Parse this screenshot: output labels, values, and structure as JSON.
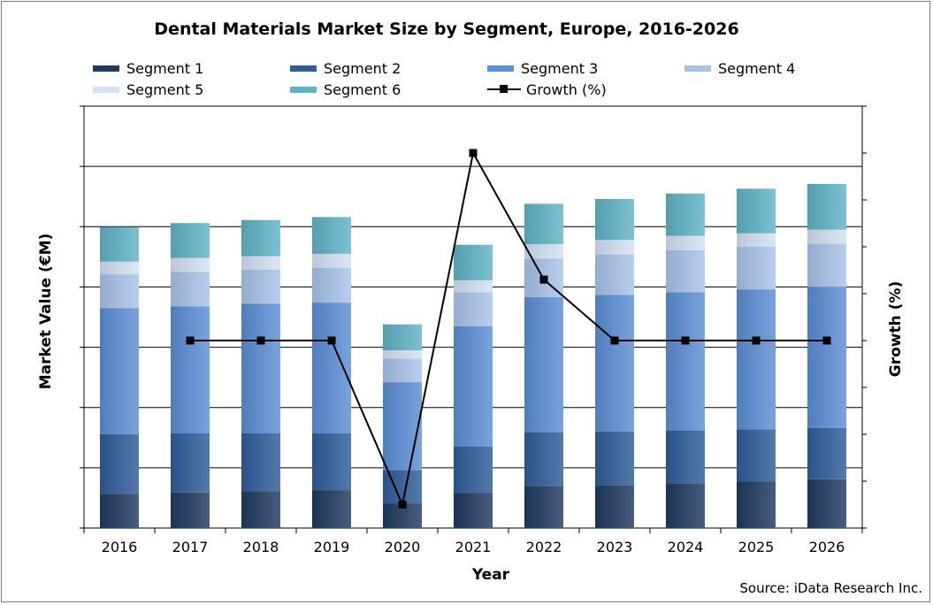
{
  "chart_data": {
    "type": "bar",
    "stacked": true,
    "title": "Dental Materials Market Size by Segment, Europe, 2016-2026",
    "xlabel": "Year",
    "ylabel": "Market Value (€M)",
    "y2label": "Growth (%)",
    "source": "Source: iData Research Inc.",
    "grid": "horizontal",
    "legend_position": "top",
    "categories": [
      "2016",
      "2017",
      "2018",
      "2019",
      "2020",
      "2021",
      "2022",
      "2023",
      "2024",
      "2025",
      "2026"
    ],
    "ylim": [
      0,
      7
    ],
    "y2lim": [
      0,
      9
    ],
    "series": [
      {
        "name": "Segment 1",
        "color": "#1f3a60",
        "values": [
          0.57,
          0.59,
          0.61,
          0.63,
          0.41,
          0.58,
          0.7,
          0.71,
          0.74,
          0.77,
          0.81
        ]
      },
      {
        "name": "Segment 2",
        "color": "#2f5d9a",
        "values": [
          0.99,
          0.98,
          0.96,
          0.94,
          0.55,
          0.77,
          0.89,
          0.89,
          0.88,
          0.87,
          0.85
        ]
      },
      {
        "name": "Segment 3",
        "color": "#5b8fd6",
        "values": [
          2.09,
          2.11,
          2.15,
          2.17,
          1.46,
          2.0,
          2.24,
          2.27,
          2.29,
          2.32,
          2.34
        ]
      },
      {
        "name": "Segment 4",
        "color": "#a8c3ea",
        "values": [
          0.56,
          0.57,
          0.57,
          0.58,
          0.39,
          0.56,
          0.64,
          0.67,
          0.7,
          0.71,
          0.72
        ]
      },
      {
        "name": "Segment 5",
        "color": "#d4e2f4",
        "values": [
          0.21,
          0.23,
          0.22,
          0.23,
          0.14,
          0.2,
          0.24,
          0.24,
          0.24,
          0.22,
          0.23
        ]
      },
      {
        "name": "Segment 6",
        "color": "#5fb3c7",
        "values": [
          0.57,
          0.58,
          0.6,
          0.61,
          0.43,
          0.59,
          0.67,
          0.68,
          0.7,
          0.74,
          0.76
        ]
      }
    ],
    "growth": {
      "name": "Growth (%)",
      "color": "#000000",
      "values": [
        null,
        4.0,
        4.0,
        4.0,
        0.5,
        8.0,
        5.3,
        4.0,
        4.0,
        4.0,
        4.0
      ]
    }
  }
}
